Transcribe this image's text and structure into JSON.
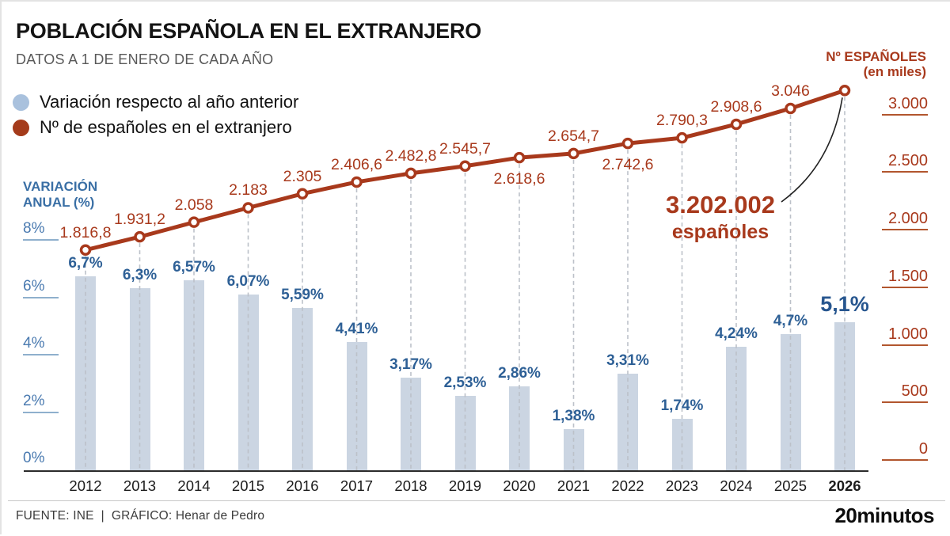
{
  "header": {
    "title": "POBLACIÓN ESPAÑOLA EN EL EXTRANJERO",
    "subtitle": "DATOS A 1 DE ENERO DE CADA AÑO"
  },
  "legend": {
    "items": [
      {
        "label": "Variación respecto al año anterior",
        "color": "#a9c1dd"
      },
      {
        "label": "Nº de españoles en el extranjero",
        "color": "#a43b1b"
      }
    ]
  },
  "axes": {
    "left_title_line1": "VARIACIÓN",
    "left_title_line2": "ANUAL (%)",
    "right_title_line1": "Nº ESPAÑOLES",
    "right_title_line2": "(en miles)"
  },
  "chart_data": {
    "type": "bar+line",
    "title": "POBLACIÓN ESPAÑOLA EN EL EXTRANJERO",
    "subtitle": "DATOS A 1 DE ENERO DE CADA AÑO",
    "categories": [
      "2012",
      "2013",
      "2014",
      "2015",
      "2016",
      "2017",
      "2018",
      "2019",
      "2020",
      "2021",
      "2022",
      "2023",
      "2024",
      "2025",
      "2026"
    ],
    "series": [
      {
        "name": "Variación respecto al año anterior",
        "type": "bar",
        "unit": "%",
        "values": [
          6.7,
          6.3,
          6.57,
          6.07,
          5.59,
          4.41,
          3.17,
          2.53,
          2.86,
          1.38,
          3.31,
          1.74,
          4.24,
          4.7,
          5.1
        ],
        "labels": [
          "6,7%",
          "6,3%",
          "6,57%",
          "6,07%",
          "5,59%",
          "4,41%",
          "3,17%",
          "2,53%",
          "2,86%",
          "1,38%",
          "3,31%",
          "1,74%",
          "4,24%",
          "4,7%",
          "5,1%"
        ]
      },
      {
        "name": "Nº de españoles en el extranjero",
        "type": "line",
        "unit": "miles",
        "values": [
          1816.8,
          1931.2,
          2058,
          2183,
          2305,
          2406.6,
          2482.8,
          2545.7,
          2618.6,
          2654.7,
          2742.6,
          2790.3,
          2908.6,
          3046,
          3202.002
        ],
        "labels": [
          "1.816,8",
          "1.931,2",
          "2.058",
          "2.183",
          "2.305",
          "2.406,6",
          "2.482,8",
          "2.545,7",
          "2.618,6",
          "2.654,7",
          "2.742,6",
          "2.790,3",
          "2.908,6",
          "3.046",
          ""
        ],
        "label_positions": [
          "above",
          "above",
          "above",
          "above",
          "above",
          "above",
          "above",
          "above",
          "below",
          "above",
          "below",
          "above",
          "above",
          "above",
          "none"
        ]
      }
    ],
    "left_axis": {
      "title": "VARIACIÓN ANUAL (%)",
      "unit": "%",
      "ticks": [
        0,
        2,
        4,
        6,
        8
      ],
      "tick_labels": [
        "0%",
        "2%",
        "4%",
        "6%",
        "8%"
      ],
      "range": [
        0,
        8
      ]
    },
    "right_axis": {
      "title": "Nº ESPAÑOLES (en miles)",
      "unit": "miles",
      "ticks": [
        0,
        500,
        1000,
        1500,
        2000,
        2500,
        3000
      ],
      "tick_labels": [
        "0",
        "500",
        "1.000",
        "1.500",
        "2.000",
        "2.500",
        "3.000"
      ],
      "range": [
        0,
        3250
      ]
    },
    "legend_position": "top-left",
    "grid": "dashed vertical drop lines from line points",
    "annotation": {
      "value": "3.202.002",
      "label": "españoles",
      "target_year": "2026"
    }
  },
  "colors": {
    "bar_fill": "#cbd5e2",
    "bar_label": "#2e6096",
    "line": "#a8391c",
    "left_axis": "#3a6fa5",
    "right_axis": "#a8391c",
    "dashed_line": "#bcc1c9",
    "arrow": "#222222"
  },
  "footer": {
    "source": "FUENTE: INE",
    "separator": "|",
    "credit": "GRÁFICO: Henar de Pedro",
    "brand": "20minutos"
  }
}
